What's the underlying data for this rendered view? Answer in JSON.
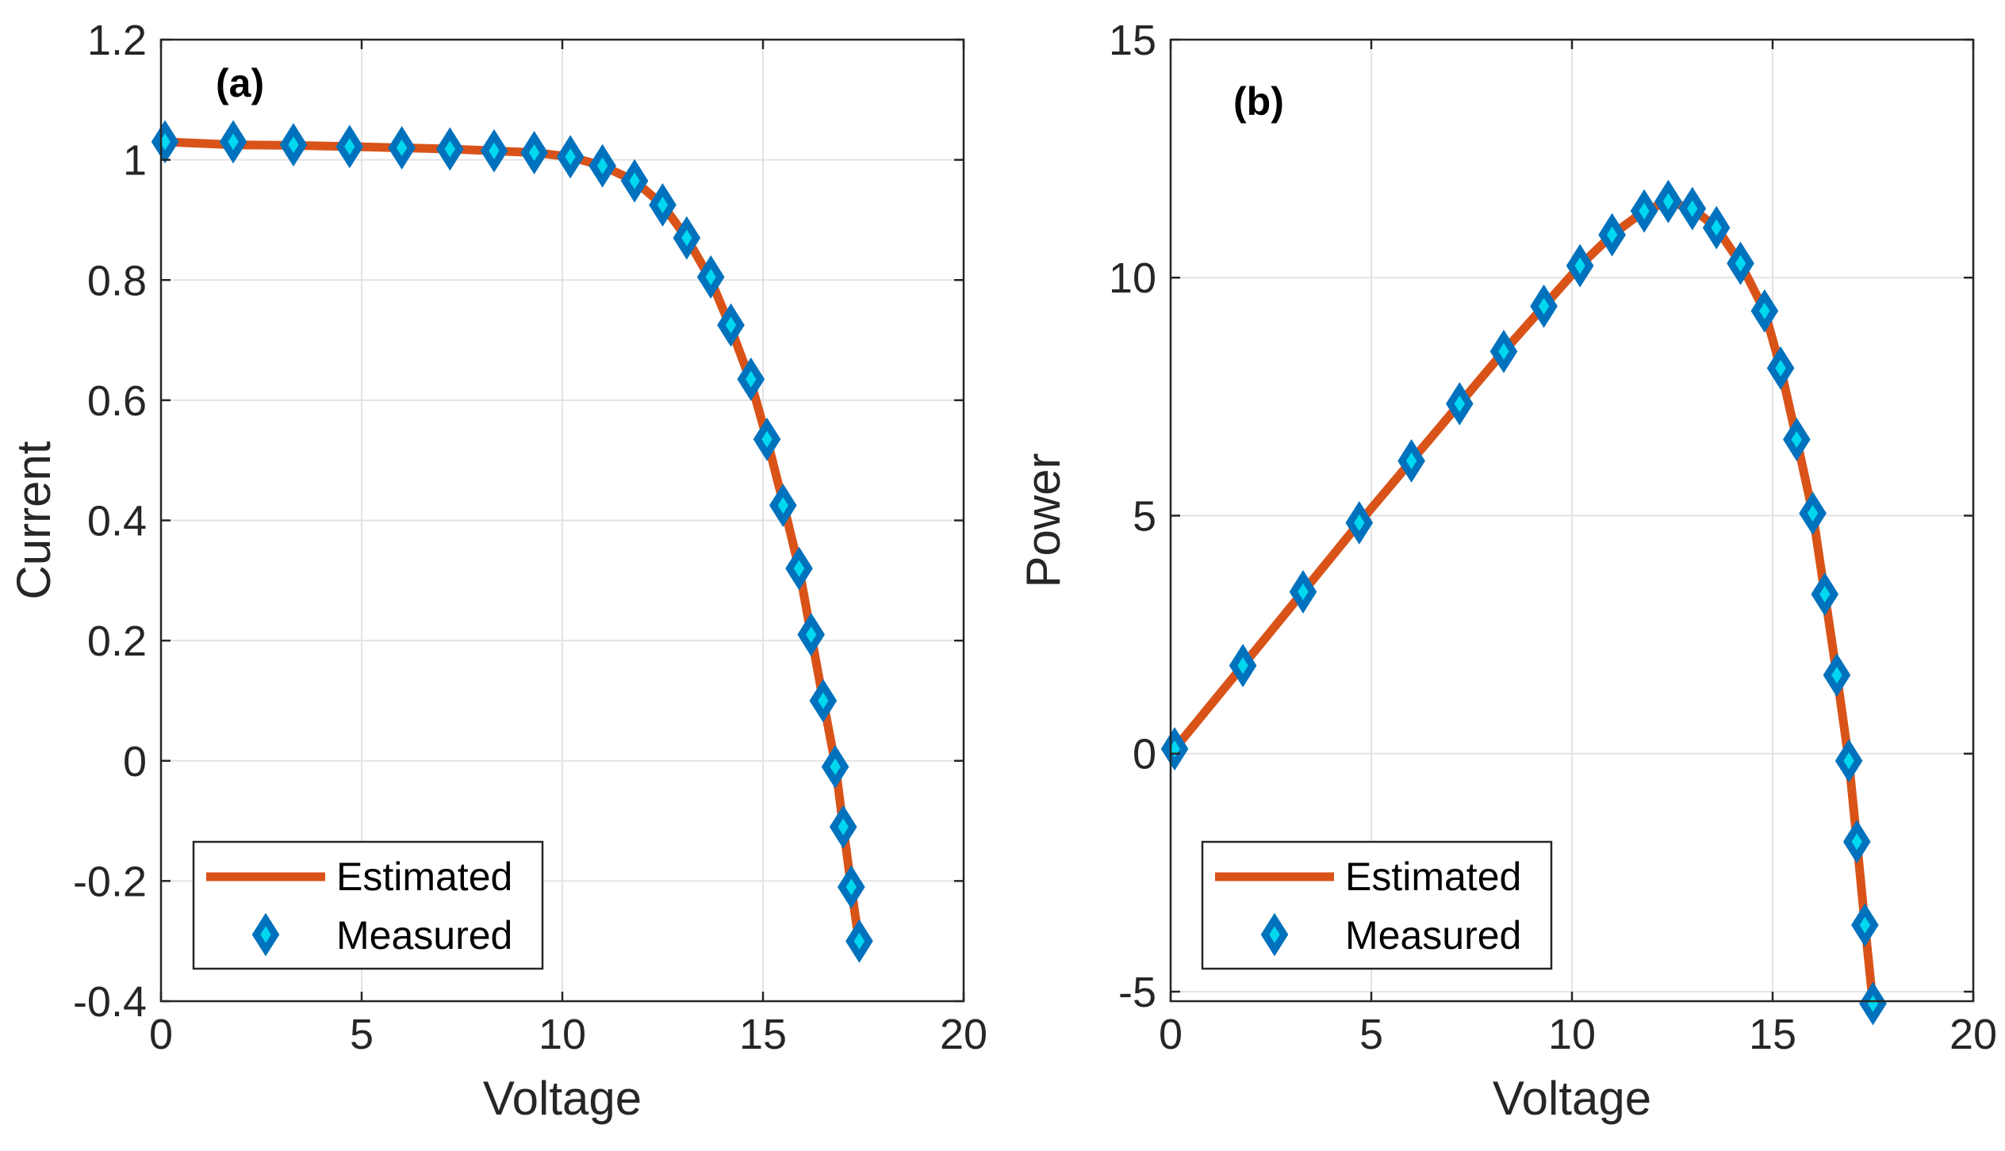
{
  "colors": {
    "estimated": "#D95319",
    "marker_edge": "#0072BD",
    "marker_fill": "#00D8F0",
    "grid": "#E3E3E3",
    "axis": "#262626"
  },
  "chart_data": [
    {
      "type": "line",
      "panel_tag": "(a)",
      "xlabel": "Voltage",
      "ylabel": "Current",
      "xlim": [
        0,
        20
      ],
      "ylim": [
        -0.4,
        1.2
      ],
      "xticks": [
        "0",
        "5",
        "10",
        "15",
        "20"
      ],
      "xtick_values": [
        0,
        5,
        10,
        15,
        20
      ],
      "yticks": [
        "-0.4",
        "-0.2",
        "0",
        "0.2",
        "0.4",
        "0.6",
        "0.8",
        "1",
        "1.2"
      ],
      "ytick_values": [
        -0.4,
        -0.2,
        0,
        0.2,
        0.4,
        0.6,
        0.8,
        1.0,
        1.2
      ],
      "grid": true,
      "legend": {
        "placement": "bottom-left",
        "entries": [
          "Estimated",
          "Measured"
        ]
      },
      "series": [
        {
          "name": "Estimated",
          "style": "line",
          "x": [
            0.1,
            1.8,
            3.3,
            4.7,
            6.0,
            7.2,
            8.3,
            9.3,
            10.2,
            11.0,
            11.8,
            12.5,
            13.1,
            13.7,
            14.2,
            14.7,
            15.1,
            15.5,
            15.9,
            16.2,
            16.5,
            16.8,
            17.0,
            17.2,
            17.4
          ],
          "y": [
            1.03,
            1.025,
            1.024,
            1.022,
            1.02,
            1.018,
            1.015,
            1.012,
            1.005,
            0.99,
            0.965,
            0.925,
            0.87,
            0.8,
            0.72,
            0.63,
            0.535,
            0.43,
            0.32,
            0.21,
            0.1,
            -0.005,
            -0.11,
            -0.21,
            -0.305
          ]
        },
        {
          "name": "Measured",
          "style": "markers",
          "x": [
            0.1,
            1.8,
            3.3,
            4.7,
            6.0,
            7.2,
            8.3,
            9.3,
            10.2,
            11.0,
            11.8,
            12.5,
            13.1,
            13.7,
            14.2,
            14.7,
            15.1,
            15.5,
            15.9,
            16.2,
            16.5,
            16.8,
            17.0,
            17.2,
            17.4
          ],
          "y": [
            1.03,
            1.03,
            1.025,
            1.022,
            1.02,
            1.018,
            1.015,
            1.012,
            1.005,
            0.99,
            0.965,
            0.925,
            0.87,
            0.805,
            0.725,
            0.635,
            0.535,
            0.425,
            0.32,
            0.21,
            0.1,
            -0.01,
            -0.11,
            -0.21,
            -0.3
          ]
        }
      ]
    },
    {
      "type": "line",
      "panel_tag": "(b)",
      "xlabel": "Voltage",
      "ylabel": "Power",
      "xlim": [
        0,
        20
      ],
      "ylim": [
        -5.2,
        15
      ],
      "xticks": [
        "0",
        "5",
        "10",
        "15",
        "20"
      ],
      "xtick_values": [
        0,
        5,
        10,
        15,
        20
      ],
      "yticks": [
        "-5",
        "0",
        "5",
        "10",
        "15"
      ],
      "ytick_values": [
        -5,
        0,
        5,
        10,
        15
      ],
      "grid": true,
      "legend": {
        "placement": "bottom-left",
        "entries": [
          "Estimated",
          "Measured"
        ]
      },
      "series": [
        {
          "name": "Estimated",
          "style": "line",
          "x": [
            0.1,
            1.8,
            3.3,
            4.7,
            6.0,
            7.2,
            8.3,
            9.3,
            10.2,
            11.0,
            11.8,
            12.4,
            13.0,
            13.6,
            14.2,
            14.8,
            15.2,
            15.6,
            16.0,
            16.3,
            16.6,
            16.9,
            17.1,
            17.3,
            17.5
          ],
          "y": [
            0.1,
            1.85,
            3.4,
            4.85,
            6.15,
            7.35,
            8.45,
            9.4,
            10.25,
            10.9,
            11.4,
            11.6,
            11.45,
            11.05,
            10.3,
            9.3,
            8.1,
            6.6,
            5.05,
            3.35,
            1.65,
            -0.15,
            -1.85,
            -3.6,
            -5.25
          ]
        },
        {
          "name": "Measured",
          "style": "markers",
          "x": [
            0.1,
            1.8,
            3.3,
            4.7,
            6.0,
            7.2,
            8.3,
            9.3,
            10.2,
            11.0,
            11.8,
            12.4,
            13.0,
            13.6,
            14.2,
            14.8,
            15.2,
            15.6,
            16.0,
            16.3,
            16.6,
            16.9,
            17.1,
            17.3,
            17.5
          ],
          "y": [
            0.1,
            1.85,
            3.4,
            4.85,
            6.15,
            7.35,
            8.45,
            9.4,
            10.25,
            10.9,
            11.4,
            11.6,
            11.45,
            11.05,
            10.3,
            9.3,
            8.1,
            6.6,
            5.05,
            3.35,
            1.65,
            -0.15,
            -1.85,
            -3.6,
            -5.25
          ]
        }
      ]
    }
  ]
}
